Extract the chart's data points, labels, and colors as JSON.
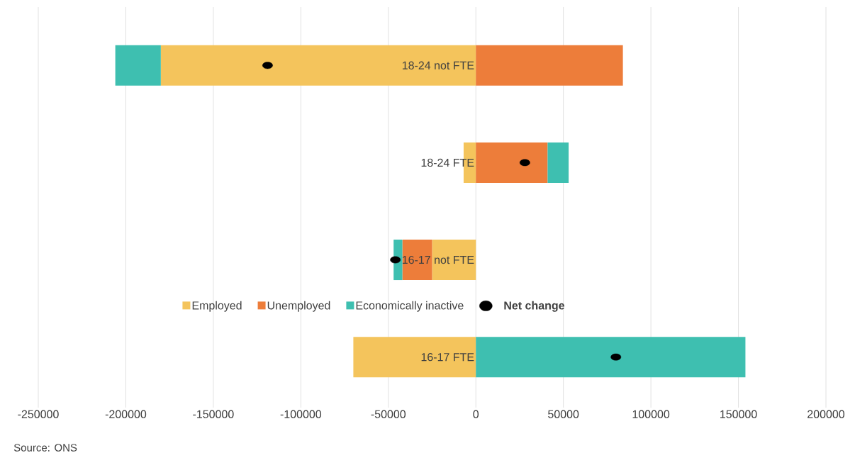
{
  "chart_data": {
    "type": "bar",
    "orientation": "horizontal",
    "stacked": true,
    "categories": [
      "18-24 not FTE",
      "18-24 FTE",
      "16-17 not FTE",
      "16-17 FTE"
    ],
    "series": [
      {
        "name": "Employed",
        "color": "#f4c45c",
        "values": [
          -180000,
          -7000,
          -25000,
          -70000
        ]
      },
      {
        "name": "Unemployed",
        "color": "#ed7d3a",
        "values": [
          84000,
          41000,
          -17000,
          null
        ]
      },
      {
        "name": "Economically inactive",
        "color": "#3ebfb0",
        "values": [
          -26000,
          12000,
          -5000,
          154000
        ]
      },
      {
        "name": "Net change",
        "type": "scatter",
        "color": "#000000",
        "marker": "circle",
        "values": [
          -119000,
          28000,
          -46000,
          80000
        ]
      }
    ],
    "xlim": [
      -250000,
      200000
    ],
    "xticks": [
      -250000,
      -200000,
      -150000,
      -100000,
      -50000,
      0,
      50000,
      100000,
      150000,
      200000
    ],
    "grid": "x",
    "legend": "bottom",
    "annotations": [
      "Source: ONS"
    ]
  }
}
